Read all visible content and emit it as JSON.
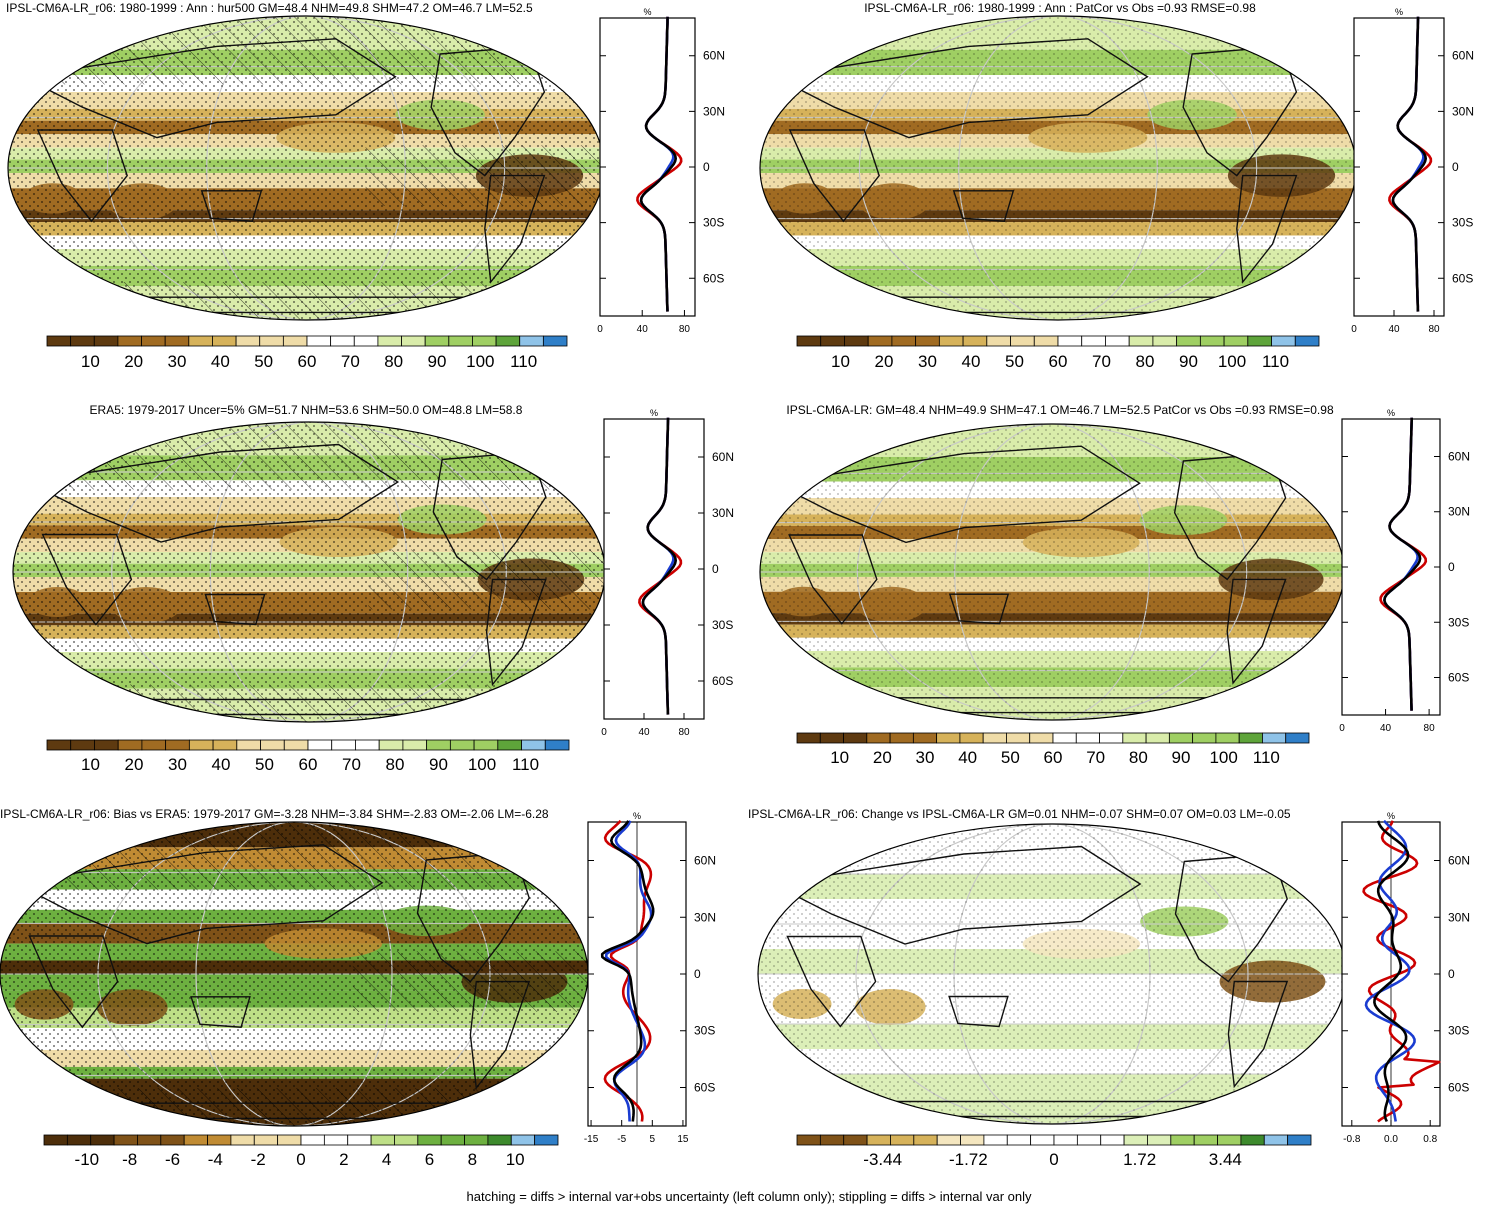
{
  "colors": {
    "ramp": [
      "#5e3a10",
      "#7f5218",
      "#a06b22",
      "#c08b33",
      "#d6b25a",
      "#e6cb86",
      "#efdca8",
      "#f6ebcc",
      "#ffffff",
      "#ffffff",
      "#d9ecaa",
      "#bedf87",
      "#9fcf63",
      "#80bc4c",
      "#5ea43a",
      "#3d8a2c",
      "#256f22",
      "#8fc3e8",
      "#2f7fc8"
    ],
    "lat_model": "#cc0000",
    "lat_obs": "#1a3cd1",
    "lat_mean": "#000000",
    "coast": "#111111",
    "grid": "#c8c8c8"
  },
  "footer": "hatching = diffs > internal var+obs uncertainty (left column only); stippling = diffs > internal var only",
  "chart_data": [
    {
      "type": "heatmap",
      "title": "IPSL-CM6A-LR_r06: 1980-1999 : Ann : hur500 GM=48.4 NHM=49.8 SHM=47.2 OM=46.7 LM=52.5",
      "colorbar_labels": [
        "10",
        "20",
        "30",
        "40",
        "50",
        "60",
        "70",
        "80",
        "90",
        "100",
        "110"
      ],
      "lat_ticks": [
        "60N",
        "30N",
        "0",
        "30S",
        "60S"
      ],
      "lat_values": [
        60,
        30,
        0,
        -30,
        -60
      ],
      "xticks": [
        "0",
        "40",
        "80"
      ],
      "xvals": [
        0,
        40,
        80
      ],
      "xlim": [
        0,
        90
      ],
      "unit": "%",
      "hatching": true,
      "stippling": true
    },
    {
      "type": "heatmap",
      "title": "IPSL-CM6A-LR_r06: 1980-1999 : Ann : PatCor vs Obs =0.93 RMSE=0.98",
      "colorbar_labels": [
        "10",
        "20",
        "30",
        "40",
        "50",
        "60",
        "70",
        "80",
        "90",
        "100",
        "110"
      ],
      "lat_ticks": [
        "60N",
        "30N",
        "0",
        "30S",
        "60S"
      ],
      "lat_values": [
        60,
        30,
        0,
        -30,
        -60
      ],
      "xticks": [
        "0",
        "40",
        "80"
      ],
      "xvals": [
        0,
        40,
        80
      ],
      "xlim": [
        0,
        90
      ],
      "unit": "%",
      "hatching": false,
      "stippling": true
    },
    {
      "type": "heatmap",
      "title": "ERA5: 1979-2017 Uncer=5% GM=51.7 NHM=53.6 SHM=50.0 OM=48.8 LM=58.8",
      "colorbar_labels": [
        "10",
        "20",
        "30",
        "40",
        "50",
        "60",
        "70",
        "80",
        "90",
        "100",
        "110"
      ],
      "lat_ticks": [
        "60N",
        "30N",
        "0",
        "30S",
        "60S"
      ],
      "lat_values": [
        60,
        30,
        0,
        -30,
        -60
      ],
      "xticks": [
        "0",
        "40",
        "80"
      ],
      "xvals": [
        0,
        40,
        80
      ],
      "xlim": [
        0,
        100
      ],
      "unit": "%",
      "hatching": true,
      "stippling": true
    },
    {
      "type": "heatmap",
      "title": "IPSL-CM6A-LR: GM=48.4 NHM=49.9 SHM=47.1 OM=46.7 LM=52.5 PatCor vs Obs =0.93 RMSE=0.98",
      "colorbar_labels": [
        "10",
        "20",
        "30",
        "40",
        "50",
        "60",
        "70",
        "80",
        "90",
        "100",
        "110"
      ],
      "lat_ticks": [
        "60N",
        "30N",
        "0",
        "30S",
        "60S"
      ],
      "lat_values": [
        60,
        30,
        0,
        -30,
        -60
      ],
      "xticks": [
        "0",
        "40",
        "80"
      ],
      "xvals": [
        0,
        40,
        80
      ],
      "xlim": [
        0,
        90
      ],
      "unit": "%",
      "hatching": false,
      "stippling": true
    },
    {
      "type": "heatmap",
      "title": "IPSL-CM6A-LR_r06: Bias vs ERA5: 1979-2017 GM=-3.28 NHM=-3.84 SHM=-2.83 OM=-2.06 LM=-6.28",
      "colorbar_labels": [
        "-10",
        "-8",
        "-6",
        "-4",
        "-2",
        "0",
        "2",
        "4",
        "6",
        "8",
        "10"
      ],
      "lat_ticks": [
        "60N",
        "30N",
        "0",
        "30S",
        "60S"
      ],
      "lat_values": [
        60,
        30,
        0,
        -30,
        -60
      ],
      "xticks": [
        "-15",
        "-5",
        "5",
        "15"
      ],
      "xvals": [
        -15,
        -5,
        5,
        15
      ],
      "xlim": [
        -16,
        16
      ],
      "unit": "%",
      "hatching": true,
      "stippling": true
    },
    {
      "type": "heatmap",
      "title": "IPSL-CM6A-LR_r06: Change vs IPSL-CM6A-LR GM=0.01 NHM=-0.07 SHM=0.07 OM=0.03 LM=-0.05",
      "colorbar_labels": [
        "-3.44",
        "-1.72",
        "0",
        "1.72",
        "3.44"
      ],
      "lat_ticks": [
        "60N",
        "30N",
        "0",
        "30S",
        "60S"
      ],
      "lat_values": [
        60,
        30,
        0,
        -30,
        -60
      ],
      "xticks": [
        "-0.8",
        "0.0",
        "0.8"
      ],
      "xvals": [
        -0.8,
        0,
        0.8
      ],
      "xlim": [
        -1.0,
        1.0
      ],
      "unit": "%",
      "hatching": false,
      "stippling": true
    }
  ]
}
